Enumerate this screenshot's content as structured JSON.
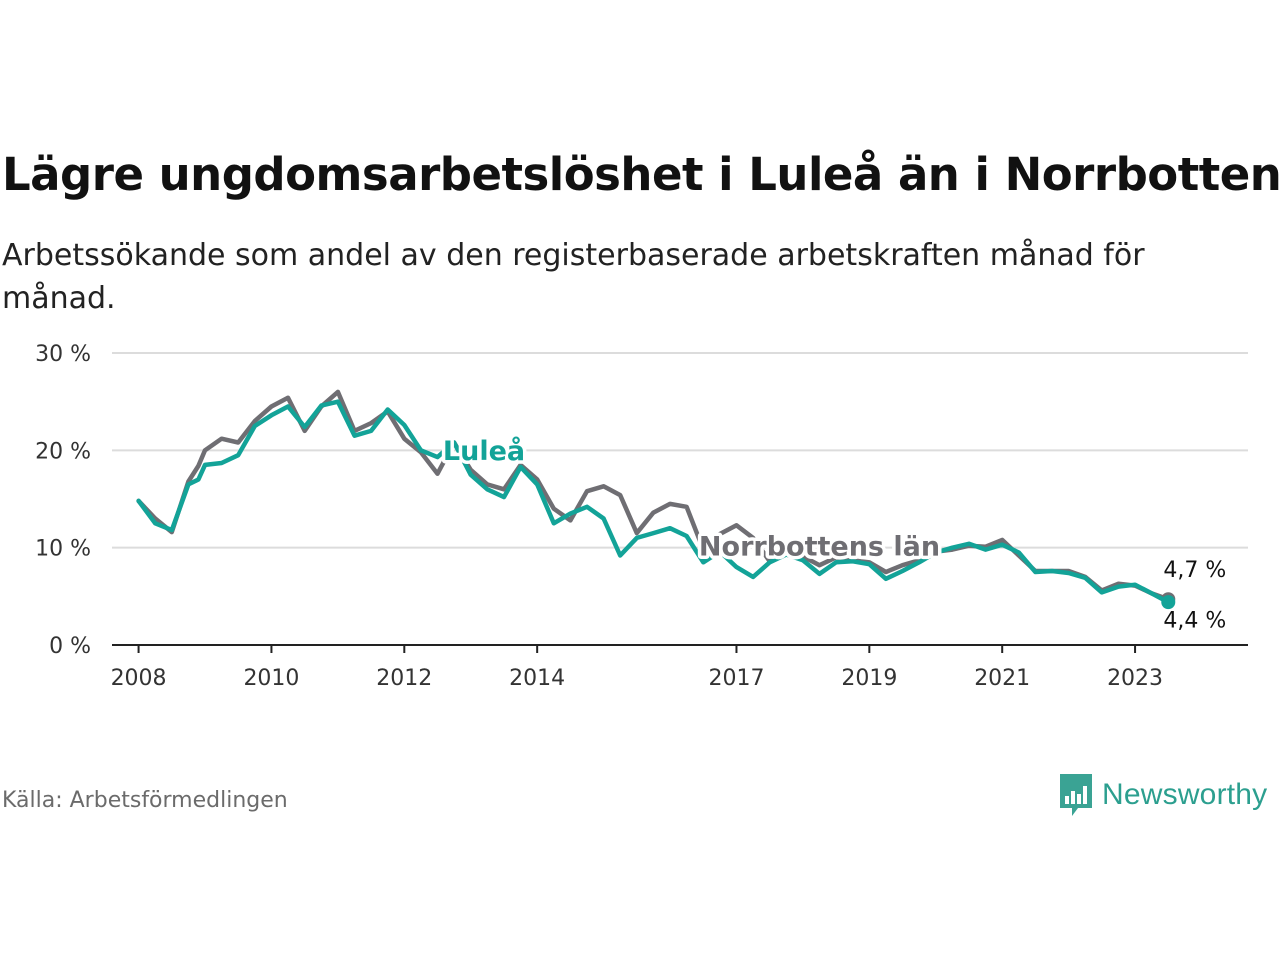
{
  "title": "Lägre ungdomsarbetslöshet i Luleå än i Norrbotten",
  "subtitle": "Arbetssökande som andel av den registerbaserade arbetskraften månad för månad.",
  "source": "Källa: Arbetsförmedlingen",
  "brand": "Newsworthy",
  "chart_data": {
    "type": "line",
    "title": "Lägre ungdomsarbetslöshet i Luleå än i Norrbotten",
    "xlabel": "",
    "ylabel": "",
    "ylim": [
      0,
      30
    ],
    "xlim": [
      2007.6,
      2024.7
    ],
    "grid": true,
    "y_ticks": [
      0,
      10,
      20,
      30
    ],
    "y_tick_labels": [
      "0 %",
      "10 %",
      "20 %",
      "30 %"
    ],
    "x_ticks": [
      2008,
      2010,
      2012,
      2014,
      2017,
      2019,
      2021,
      2023
    ],
    "x_tick_labels": [
      "2008",
      "2010",
      "2012",
      "2014",
      "2017",
      "2019",
      "2021",
      "2023"
    ],
    "colors": {
      "Norrbottens län": "#6f6e73",
      "Luleå": "#13a398"
    },
    "series": [
      {
        "name": "Norrbottens län",
        "label": "Norrbottens län",
        "end_label": "4,7 %",
        "x": [
          2008.0,
          2008.25,
          2008.5,
          2008.75,
          2008.9,
          2009.0,
          2009.25,
          2009.5,
          2009.75,
          2010.0,
          2010.25,
          2010.5,
          2010.75,
          2011.0,
          2011.25,
          2011.5,
          2011.75,
          2012.0,
          2012.25,
          2012.5,
          2012.75,
          2013.0,
          2013.25,
          2013.5,
          2013.75,
          2014.0,
          2014.25,
          2014.5,
          2014.75,
          2015.0,
          2015.25,
          2015.5,
          2015.75,
          2016.0,
          2016.25,
          2016.5,
          2016.75,
          2017.0,
          2017.25,
          2017.5,
          2017.75,
          2018.0,
          2018.25,
          2018.5,
          2018.75,
          2019.0,
          2019.25,
          2019.5,
          2019.75,
          2020.0,
          2020.25,
          2020.5,
          2020.75,
          2021.0,
          2021.25,
          2021.5,
          2021.75,
          2022.0,
          2022.25,
          2022.5,
          2022.75,
          2023.0,
          2023.25,
          2023.5
        ],
        "values": [
          14.8,
          13.0,
          11.6,
          16.8,
          18.4,
          20.0,
          21.2,
          20.8,
          23.0,
          24.5,
          25.4,
          22.0,
          24.5,
          26.0,
          22.0,
          22.8,
          24.0,
          21.2,
          19.8,
          17.6,
          20.8,
          18.0,
          16.5,
          16.0,
          18.5,
          17.0,
          14.0,
          12.8,
          15.8,
          16.3,
          15.4,
          11.5,
          13.6,
          14.5,
          14.2,
          9.8,
          11.4,
          12.3,
          11.0,
          8.6,
          9.8,
          9.1,
          8.2,
          9.0,
          8.7,
          8.5,
          7.5,
          8.2,
          8.7,
          9.6,
          9.8,
          10.2,
          10.1,
          10.8,
          9.2,
          7.6,
          7.6,
          7.6,
          7.0,
          5.6,
          6.3,
          6.1,
          5.3,
          4.7
        ]
      },
      {
        "name": "Luleå",
        "label": "Luleå",
        "end_label": "4,4 %",
        "x": [
          2008.0,
          2008.25,
          2008.5,
          2008.75,
          2008.9,
          2009.0,
          2009.25,
          2009.5,
          2009.75,
          2010.0,
          2010.25,
          2010.5,
          2010.75,
          2011.0,
          2011.25,
          2011.5,
          2011.75,
          2012.0,
          2012.25,
          2012.5,
          2012.75,
          2013.0,
          2013.25,
          2013.5,
          2013.75,
          2014.0,
          2014.25,
          2014.5,
          2014.75,
          2015.0,
          2015.25,
          2015.5,
          2015.75,
          2016.0,
          2016.25,
          2016.5,
          2016.75,
          2017.0,
          2017.25,
          2017.5,
          2017.75,
          2018.0,
          2018.25,
          2018.5,
          2018.75,
          2019.0,
          2019.25,
          2019.5,
          2019.75,
          2020.0,
          2020.25,
          2020.5,
          2020.75,
          2021.0,
          2021.25,
          2021.5,
          2021.75,
          2022.0,
          2022.25,
          2022.5,
          2022.75,
          2023.0,
          2023.25,
          2023.5
        ],
        "values": [
          14.8,
          12.5,
          11.8,
          16.5,
          17.0,
          18.5,
          18.7,
          19.5,
          22.5,
          23.6,
          24.5,
          22.4,
          24.6,
          25.0,
          21.5,
          22.0,
          24.2,
          22.6,
          20.0,
          19.3,
          20.8,
          17.5,
          16.0,
          15.2,
          18.3,
          16.5,
          12.5,
          13.5,
          14.2,
          13.0,
          9.2,
          11.0,
          11.5,
          12.0,
          11.2,
          8.5,
          9.6,
          8.0,
          7.0,
          8.5,
          9.3,
          8.7,
          7.3,
          8.5,
          8.6,
          8.3,
          6.8,
          7.6,
          8.5,
          9.5,
          10.0,
          10.4,
          9.8,
          10.3,
          9.5,
          7.5,
          7.6,
          7.4,
          6.9,
          5.4,
          6.0,
          6.2,
          5.3,
          4.4
        ]
      }
    ]
  }
}
